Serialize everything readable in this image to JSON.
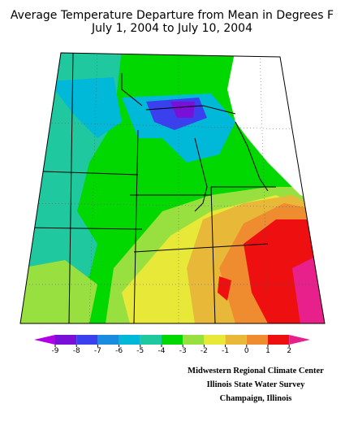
{
  "title": [
    "Average Temperature Departure from Mean in Degrees F",
    "July 1, 2004 to July 10, 2004"
  ],
  "legend": {
    "values": [
      -9,
      -8,
      -7,
      -6,
      -5,
      -4,
      -3,
      -2,
      -1,
      0,
      1,
      2
    ],
    "colors": [
      "#b000e8",
      "#7a10d8",
      "#3a40ee",
      "#1a8ce0",
      "#00b8d8",
      "#20c8a0",
      "#00d800",
      "#98e040",
      "#e8e838",
      "#e8b838",
      "#f08c30",
      "#ee1010",
      "#e8208c"
    ]
  },
  "credits": [
    "Midwestern Regional Climate Center",
    "Illinois State Water Survey",
    "Champaign, Illinois"
  ]
}
